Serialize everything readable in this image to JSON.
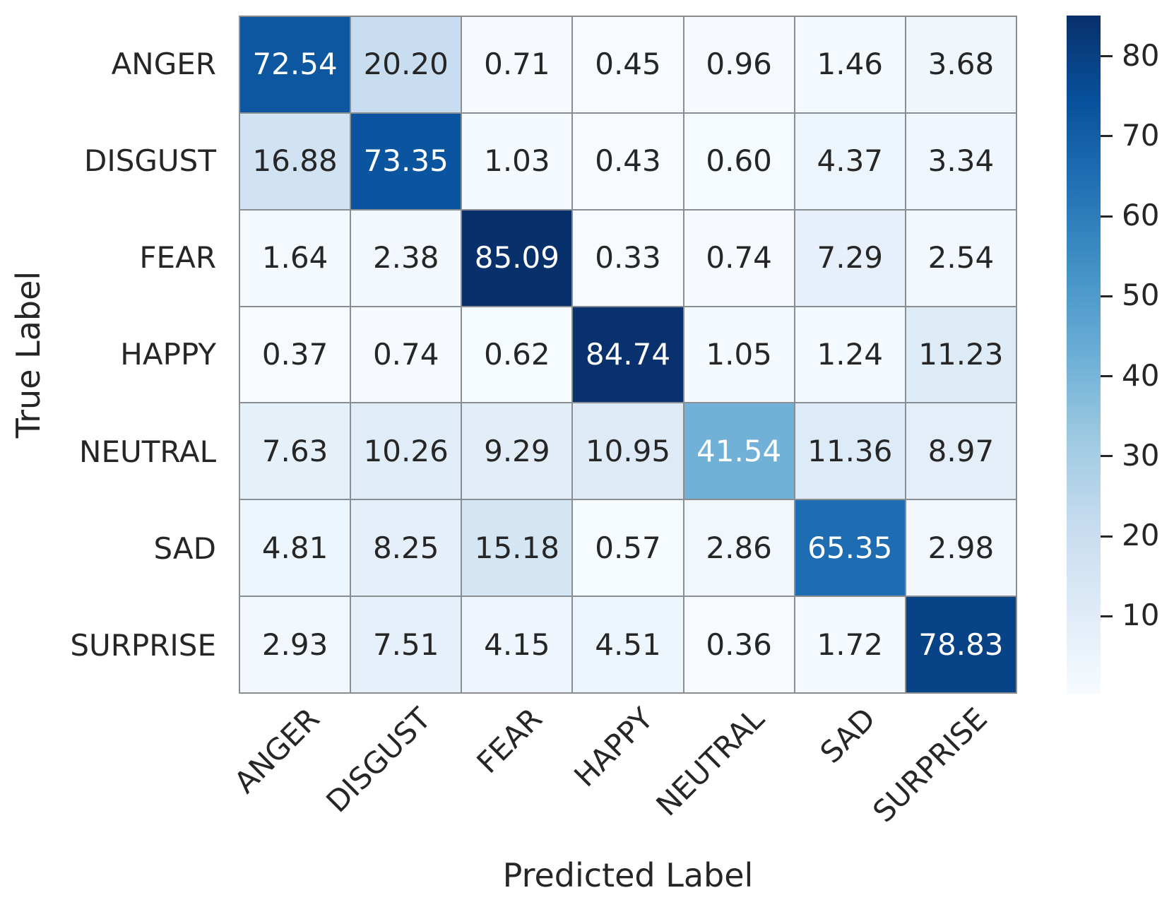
{
  "chart_data": {
    "type": "heatmap",
    "title": "",
    "xlabel": "Predicted Label",
    "ylabel": "True Label",
    "x_categories": [
      "ANGER",
      "DISGUST",
      "FEAR",
      "HAPPY",
      "NEUTRAL",
      "SAD",
      "SURPRISE"
    ],
    "y_categories": [
      "ANGER",
      "DISGUST",
      "FEAR",
      "HAPPY",
      "NEUTRAL",
      "SAD",
      "SURPRISE"
    ],
    "matrix": [
      [
        72.54,
        20.2,
        0.71,
        0.45,
        0.96,
        1.46,
        3.68
      ],
      [
        16.88,
        73.35,
        1.03,
        0.43,
        0.6,
        4.37,
        3.34
      ],
      [
        1.64,
        2.38,
        85.09,
        0.33,
        0.74,
        7.29,
        2.54
      ],
      [
        0.37,
        0.74,
        0.62,
        84.74,
        1.05,
        1.24,
        11.23
      ],
      [
        7.63,
        10.26,
        9.29,
        10.95,
        41.54,
        11.36,
        8.97
      ],
      [
        4.81,
        8.25,
        15.18,
        0.57,
        2.86,
        65.35,
        2.98
      ],
      [
        2.93,
        7.51,
        4.15,
        4.51,
        0.36,
        1.72,
        78.83
      ]
    ],
    "value_decimals": 2,
    "vmin": 0.33,
    "vmax": 85.09,
    "colorbar_ticks": [
      10,
      20,
      30,
      40,
      50,
      60,
      70,
      80
    ],
    "colormap": "Blues",
    "colormap_stops_rgb": [
      [
        247,
        251,
        255
      ],
      [
        222,
        235,
        247
      ],
      [
        198,
        219,
        239
      ],
      [
        158,
        202,
        225
      ],
      [
        107,
        174,
        214
      ],
      [
        66,
        146,
        198
      ],
      [
        33,
        113,
        181
      ],
      [
        8,
        81,
        156
      ],
      [
        8,
        48,
        107
      ]
    ],
    "colors": {
      "dark_text": "#262626",
      "light_text": "#ffffff",
      "gridline": "#898e93",
      "background": "#ffffff"
    },
    "legend_position": "right-colorbar",
    "grid": "cell-borders"
  }
}
